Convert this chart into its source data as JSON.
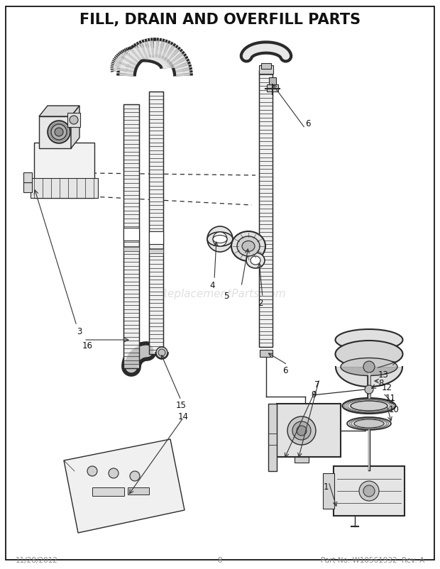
{
  "title": "FILL, DRAIN AND OVERFILL PARTS",
  "title_fontsize": 15,
  "title_fontweight": "bold",
  "footer_left": "11/28/2012",
  "footer_center": "8",
  "footer_right": "Part No. W10561932  Rev. A",
  "footer_fontsize": 7.5,
  "footer_color": "#888888",
  "background_color": "#ffffff",
  "border_color": "#000000",
  "line_color": "#2a2a2a",
  "watermark_text": "eReplacementParts.com",
  "watermark_color": "#cccccc",
  "watermark_fontsize": 11,
  "fig_width": 6.2,
  "fig_height": 8.03,
  "dpi": 100,
  "label_fontsize": 8.5,
  "label_color": "#111111"
}
